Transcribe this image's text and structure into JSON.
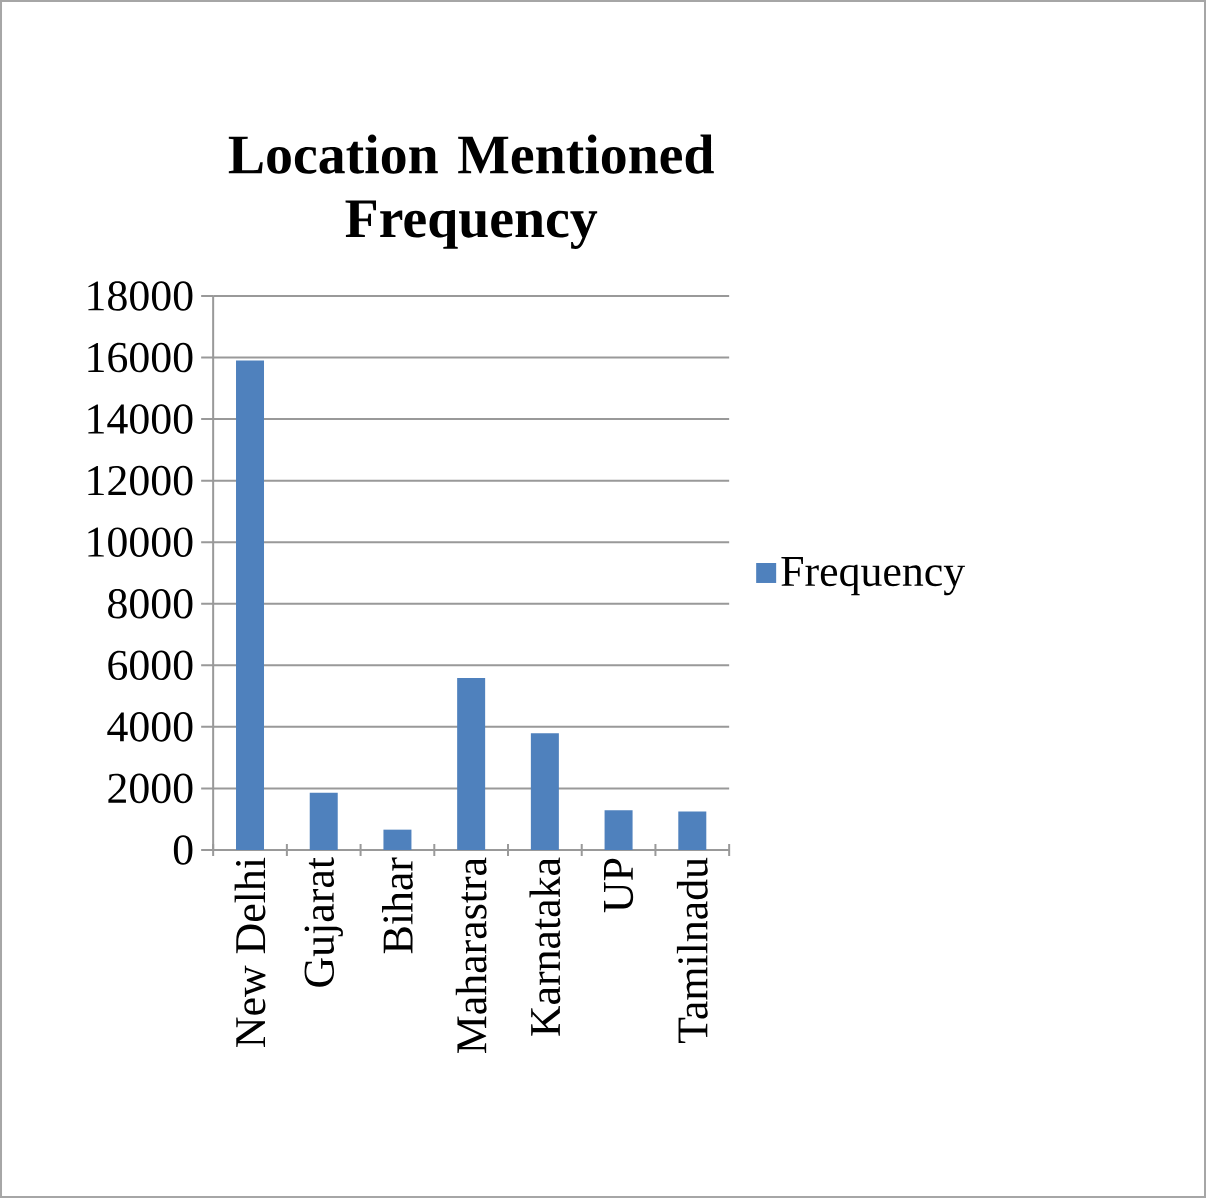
{
  "chart_data": {
    "type": "bar",
    "title": "Location Mentioned Frequency",
    "categories": [
      "New Delhi",
      "Gujarat",
      "Bihar",
      "Maharastra",
      "Karnataka",
      "UP",
      "Tamilnadu"
    ],
    "series": [
      {
        "name": "Frequency",
        "color": "#4f81bd",
        "values": [
          15900,
          1860,
          660,
          5590,
          3790,
          1290,
          1250
        ]
      }
    ],
    "ylim": [
      0,
      18000
    ],
    "yticks": [
      0,
      2000,
      4000,
      6000,
      8000,
      10000,
      12000,
      14000,
      16000,
      18000
    ],
    "grid": "y",
    "legend": "right"
  }
}
